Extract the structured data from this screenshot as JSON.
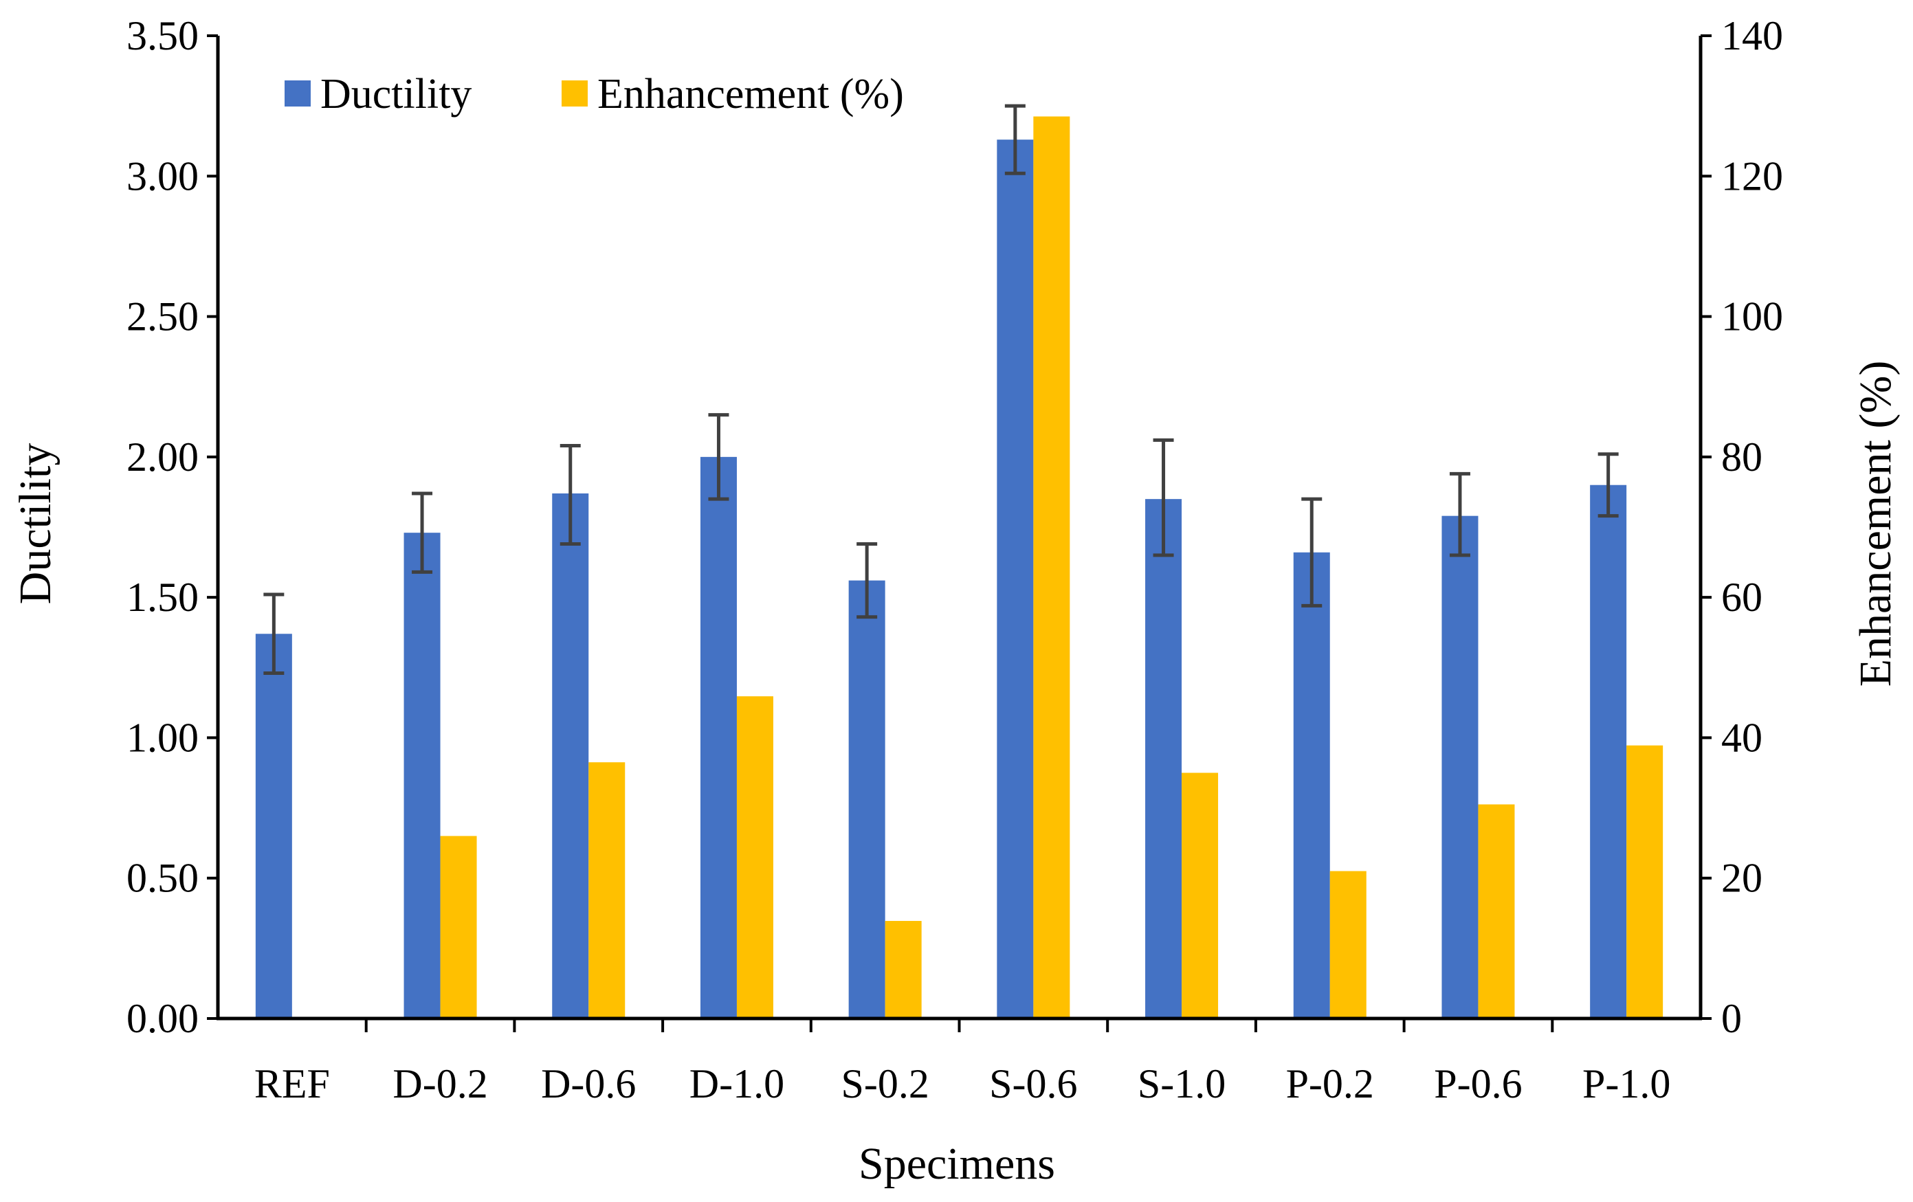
{
  "chart_data": {
    "type": "bar",
    "categories": [
      "REF",
      "D-0.2",
      "D-0.6",
      "D-1.0",
      "S-0.2",
      "S-0.6",
      "S-1.0",
      "P-0.2",
      "P-0.6",
      "P-1.0"
    ],
    "series": [
      {
        "name": "Ductility",
        "axis": "left",
        "color": "#4472C4",
        "values": [
          1.37,
          1.73,
          1.87,
          2.0,
          1.56,
          3.13,
          1.85,
          1.66,
          1.79,
          1.9
        ],
        "error_low": [
          1.23,
          1.59,
          1.69,
          1.85,
          1.43,
          3.01,
          1.65,
          1.47,
          1.65,
          1.79
        ],
        "error_high": [
          1.51,
          1.87,
          2.04,
          2.15,
          1.69,
          3.25,
          2.06,
          1.85,
          1.94,
          2.01
        ]
      },
      {
        "name": "Enhancement (%)",
        "axis": "right",
        "color": "#FFC000",
        "values": [
          0,
          26.0,
          36.5,
          45.9,
          13.9,
          128.5,
          35.0,
          21.0,
          30.5,
          38.9
        ]
      }
    ],
    "xlabel": "Specimens",
    "ylabel": "Ductility",
    "y2label": "Enhancement (%)",
    "ylim": [
      0,
      3.5
    ],
    "y2lim": [
      0,
      140
    ],
    "yticks": [
      "0.00",
      "0.50",
      "1.00",
      "1.50",
      "2.00",
      "2.50",
      "3.00",
      "3.50"
    ],
    "y2ticks": [
      "0",
      "20",
      "40",
      "60",
      "80",
      "100",
      "120",
      "140"
    ],
    "grid": false,
    "legend_position": "top-left",
    "error_bar_color": "#404040"
  }
}
